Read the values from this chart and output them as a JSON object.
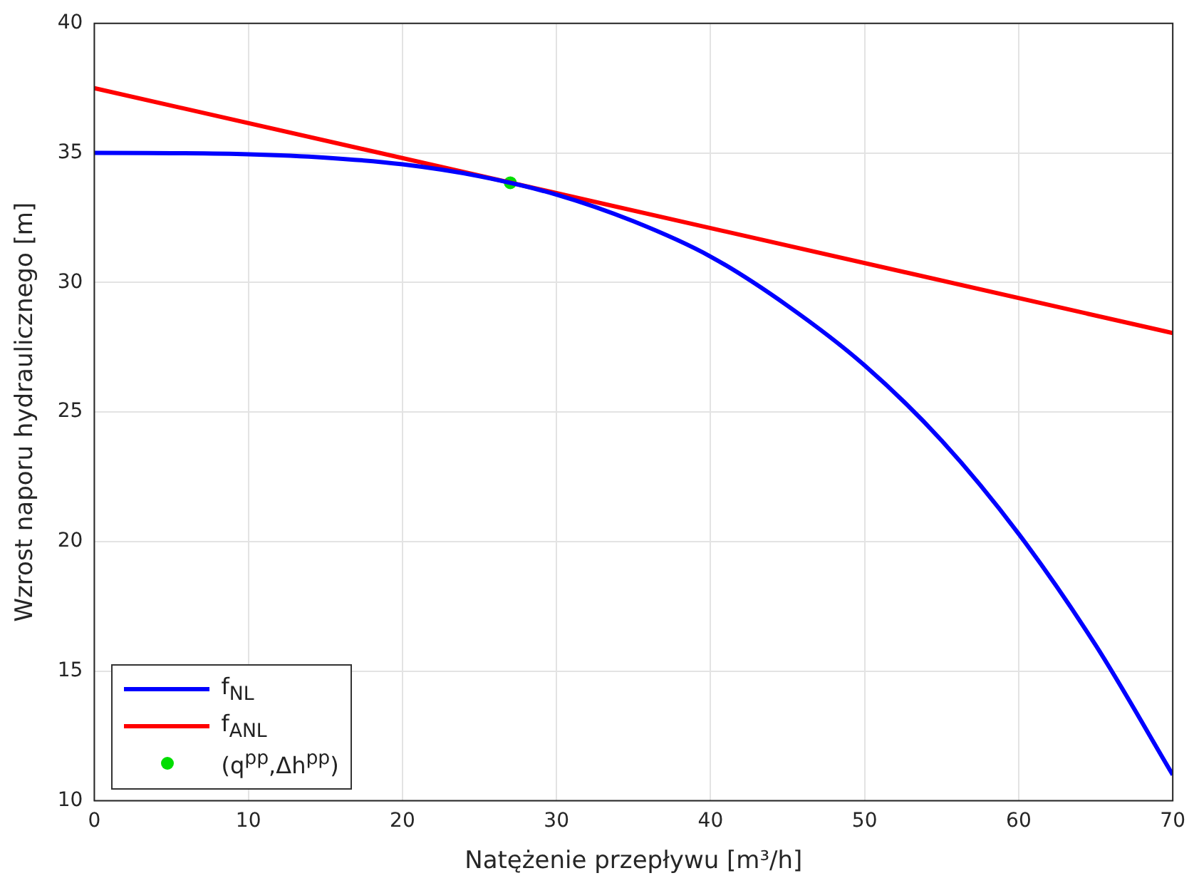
{
  "chart_data": {
    "type": "line",
    "xlabel": "Natężenie przepływu [m³/h]",
    "ylabel": "Wzrost naporu hydraulicznego [m]",
    "xlim": [
      0,
      70
    ],
    "ylim": [
      10,
      40
    ],
    "xticks": [
      0,
      10,
      20,
      30,
      40,
      50,
      60,
      70
    ],
    "yticks": [
      10,
      15,
      20,
      25,
      30,
      35,
      40
    ],
    "grid": true,
    "legend": "bottom left",
    "series": [
      {
        "name": "f$_{NL}$",
        "type": "line",
        "color": "#0000ff",
        "marker": "none",
        "x": [
          0,
          5,
          10,
          15,
          20,
          25,
          30,
          35,
          40,
          45,
          50,
          55,
          60,
          65,
          70
        ],
        "values": [
          35,
          34.99,
          34.95,
          34.82,
          34.56,
          34.1,
          33.39,
          32.36,
          31.0,
          29.1,
          26.8,
          23.9,
          20.3,
          16.0,
          11.0
        ]
      },
      {
        "name": "f$_{ANL}$",
        "type": "line",
        "color": "#ff0000",
        "marker": "none",
        "x": [
          0,
          70
        ],
        "values": [
          37.5,
          28.05
        ]
      },
      {
        "name": "(q$^{pp}$,Δh$^{pp}$)",
        "type": "scatter",
        "color": "#00dd00",
        "marker": "circle",
        "x": [
          27
        ],
        "values": [
          33.85
        ]
      }
    ]
  }
}
